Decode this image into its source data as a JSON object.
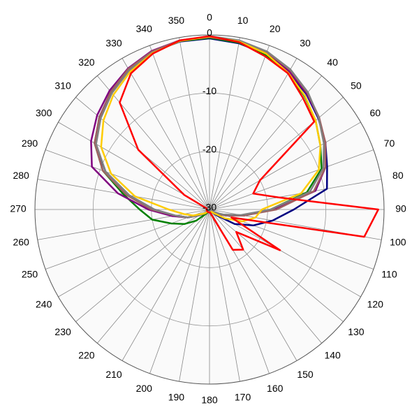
{
  "chart_data": {
    "type": "polar",
    "rlim": [
      -30,
      0
    ],
    "rticks": [
      -30,
      -20,
      -10,
      0
    ],
    "xticks": [
      0,
      10,
      20,
      30,
      40,
      50,
      60,
      70,
      80,
      90,
      100,
      110,
      120,
      130,
      140,
      150,
      160,
      170,
      180,
      190,
      200,
      210,
      220,
      230,
      240,
      250,
      260,
      270,
      280,
      290,
      300,
      310,
      320,
      330,
      340,
      350
    ],
    "x": [
      0,
      10,
      20,
      30,
      40,
      50,
      60,
      70,
      80,
      90,
      100,
      110,
      120,
      130,
      140,
      150,
      160,
      170,
      180,
      190,
      200,
      210,
      220,
      230,
      240,
      250,
      260,
      270,
      280,
      290,
      300,
      310,
      320,
      330,
      340,
      350
    ],
    "series": [
      {
        "color": "#000080",
        "values": [
          -0.6,
          -1,
          -1.6,
          -2.8,
          -4.1,
          -5.6,
          -7,
          -8.5,
          -9.5,
          -15.5,
          -19,
          -22,
          -25,
          -28.5,
          -29.5,
          -29.5,
          -29.5,
          -29.5,
          -29.5,
          -29.5,
          -29.5,
          -29.5,
          -29.5,
          -29,
          -28,
          -26,
          -24,
          -20.5,
          -16,
          -11,
          -7.3,
          -5.3,
          -3.6,
          -2.2,
          -1.2,
          -0.7
        ]
      },
      {
        "color": "#008000",
        "values": [
          -0.5,
          -0.9,
          -1.7,
          -3,
          -4.6,
          -6.2,
          -8,
          -9.5,
          -13,
          -19.5,
          -24,
          -27,
          -28.5,
          -29.5,
          -29.5,
          -29.5,
          -29.5,
          -29.5,
          -29.5,
          -29.5,
          -29.5,
          -29.5,
          -29,
          -27,
          -25,
          -23,
          -20,
          -18,
          -15,
          -10.5,
          -7.2,
          -5.3,
          -3.7,
          -2.3,
          -1.2,
          -0.6
        ]
      },
      {
        "color": "#800080",
        "values": [
          -0.4,
          -0.7,
          -1.4,
          -2.6,
          -4,
          -5.5,
          -7,
          -8.8,
          -11.5,
          -19,
          -24,
          -27,
          -28.5,
          -29.5,
          -29.5,
          -29.5,
          -29.5,
          -29.5,
          -29.5,
          -29.5,
          -29.5,
          -29.5,
          -29.5,
          -29,
          -28,
          -26,
          -23.5,
          -19.5,
          -14,
          -8.5,
          -6.5,
          -4.8,
          -3.3,
          -2,
          -1,
          -0.5
        ]
      },
      {
        "color": "#a06060",
        "values": [
          -0.3,
          -0.6,
          -1.2,
          -2.3,
          -3.8,
          -5.4,
          -7,
          -8.8,
          -11.8,
          -18.5,
          -24,
          -27,
          -28.5,
          -29.5,
          -29.5,
          -29.5,
          -29.5,
          -29.5,
          -29.5,
          -29.5,
          -29.5,
          -29.5,
          -29.5,
          -29,
          -28,
          -26,
          -24,
          -20,
          -15.5,
          -10.5,
          -7.2,
          -5.3,
          -3.6,
          -2.1,
          -1.1,
          -0.5
        ]
      },
      {
        "color": "#808080",
        "values": [
          -0.2,
          -0.5,
          -1.1,
          -2.2,
          -3.7,
          -5.5,
          -7.3,
          -9.2,
          -12.5,
          -19.5,
          -24.5,
          -27.5,
          -29,
          -29.5,
          -29.5,
          -29.5,
          -29.5,
          -29.5,
          -29.5,
          -29.5,
          -29.5,
          -29.5,
          -29.5,
          -29,
          -28,
          -26,
          -24,
          -20.5,
          -16,
          -11,
          -7.5,
          -5.6,
          -3.9,
          -2.4,
          -1.3,
          -0.6
        ]
      },
      {
        "color": "#ffcc00",
        "values": [
          -0.3,
          -0.7,
          -1.5,
          -2.9,
          -4.5,
          -6.2,
          -8,
          -10,
          -14,
          -21,
          -22,
          -24,
          -27,
          -29,
          -29.5,
          -29.5,
          -29.5,
          -29.5,
          -29.5,
          -29.5,
          -29.5,
          -29.5,
          -29.5,
          -29,
          -28.5,
          -27,
          -25.5,
          -23,
          -17,
          -12,
          -8.5,
          -6.2,
          -4.3,
          -2.7,
          -1.4,
          -0.6
        ]
      },
      {
        "color": "#ff0000",
        "values": [
          -0.2,
          -0.8,
          -2,
          -3,
          -5,
          -6.5,
          -20,
          -22,
          -18,
          -1,
          -3,
          -26,
          -16,
          -24,
          -21,
          -22,
          -29,
          -29.5,
          -29.5,
          -29.5,
          -29.5,
          -29.5,
          -29.5,
          -29.5,
          -29.5,
          -29.5,
          -29.5,
          -29.5,
          -29.5,
          -29.5,
          -25,
          -14,
          -6,
          -3,
          -1.5,
          -0.5
        ]
      }
    ]
  }
}
